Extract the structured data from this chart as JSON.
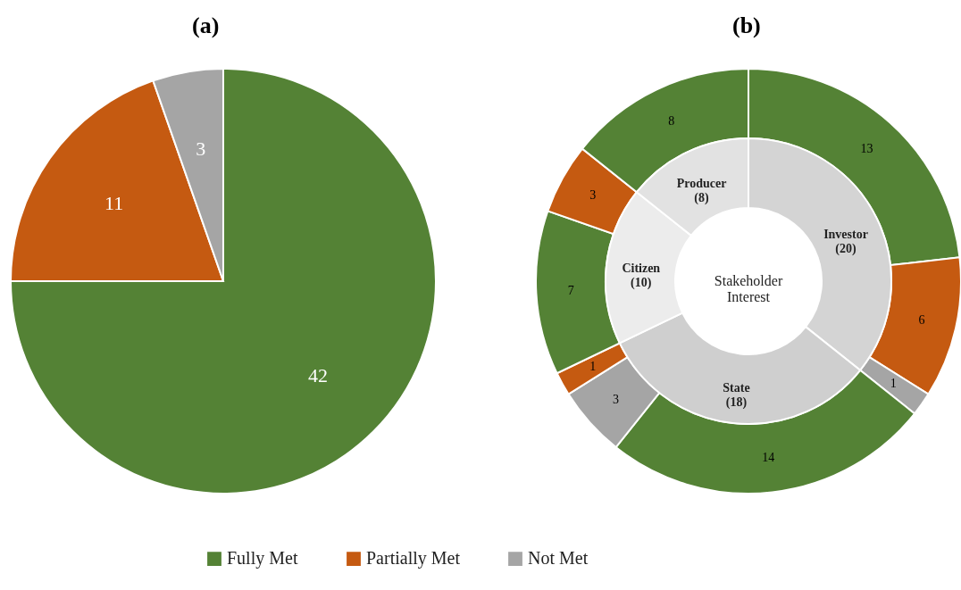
{
  "chart_data": [
    {
      "type": "pie",
      "title": "(a)",
      "categories": [
        "Fully Met",
        "Partially Met",
        "Not Met"
      ],
      "values": [
        42,
        11,
        3
      ],
      "colors": [
        "#548235",
        "#c55a11",
        "#a5a5a5"
      ],
      "data_labels": true,
      "legend": "bottom"
    },
    {
      "type": "donut",
      "title": "(b)",
      "categories": [
        "Investor (20)",
        "State (18)",
        "Citizen (10)",
        "Producer (8)"
      ],
      "values": [
        20,
        18,
        10,
        8
      ],
      "colors": [
        "#d4d4d4",
        "#cfcfcf",
        "#ececec",
        "#e2e2e2"
      ],
      "annotations": [
        "Stakeholder Interest"
      ]
    },
    {
      "type": "donut",
      "categories": [
        null,
        null,
        null,
        null,
        null,
        null,
        null,
        null,
        null
      ],
      "values": [
        13,
        6,
        1,
        14,
        3,
        1,
        7,
        3,
        8
      ],
      "colors": [
        "#548235",
        "#c55a11",
        "#a5a5a5",
        "#548235",
        "#a5a5a5",
        "#c55a11",
        "#548235",
        "#c55a11",
        "#548235"
      ],
      "data_labels": true
    }
  ]
}
